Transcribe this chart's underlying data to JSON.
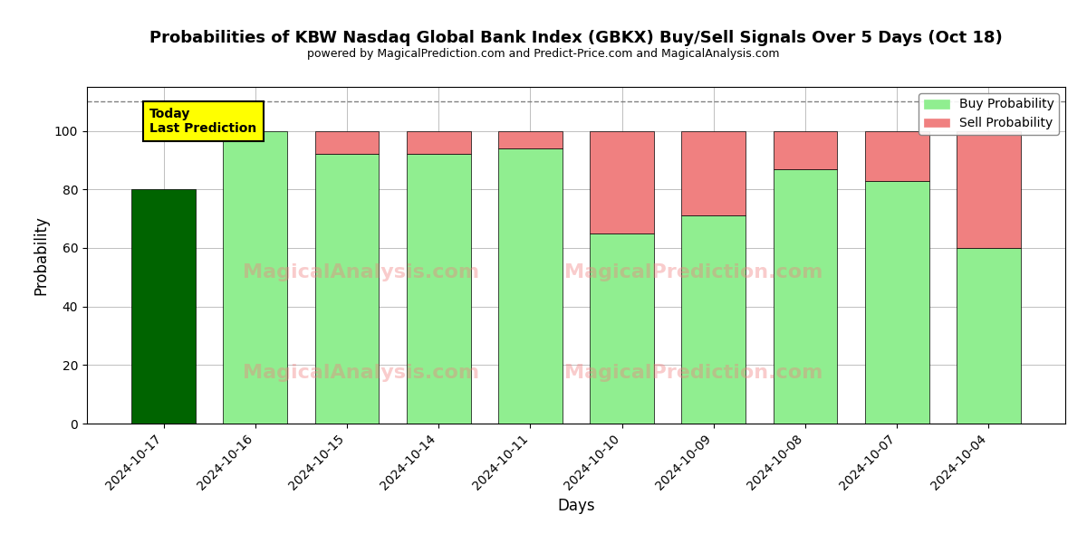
{
  "title": "Probabilities of KBW Nasdaq Global Bank Index (GBKX) Buy/Sell Signals Over 5 Days (Oct 18)",
  "subtitle": "powered by MagicalPrediction.com and Predict-Price.com and MagicalAnalysis.com",
  "xlabel": "Days",
  "ylabel": "Probability",
  "categories": [
    "2024-10-17",
    "2024-10-16",
    "2024-10-15",
    "2024-10-14",
    "2024-10-11",
    "2024-10-10",
    "2024-10-09",
    "2024-10-08",
    "2024-10-07",
    "2024-10-04"
  ],
  "buy_values": [
    80,
    100,
    92,
    92,
    94,
    65,
    71,
    87,
    83,
    60
  ],
  "sell_values": [
    0,
    0,
    8,
    8,
    6,
    35,
    29,
    13,
    17,
    40
  ],
  "today_bar_color": "#006400",
  "buy_color": "#90EE90",
  "sell_color": "#F08080",
  "today_label_bg": "#FFFF00",
  "dashed_line_y": 110,
  "ylim": [
    0,
    115
  ],
  "yticks": [
    0,
    20,
    40,
    60,
    80,
    100
  ],
  "figsize": [
    12,
    6
  ],
  "dpi": 100
}
